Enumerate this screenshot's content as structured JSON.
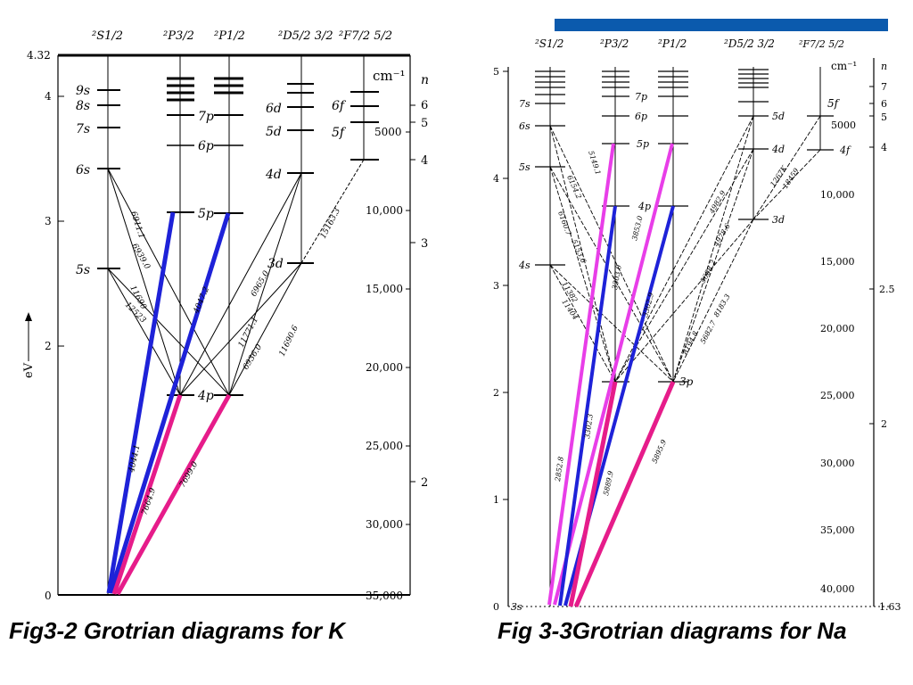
{
  "top_bar_color": "#0b5aad",
  "colors": {
    "blue": "#1e22d8",
    "magenta": "#e61c8a",
    "violet": "#e83ee8",
    "black": "#000000"
  },
  "captions": {
    "k": "Fig3-2  Grotrian diagrams for K",
    "na": "Fig 3-3Grotrian diagrams for Na"
  },
  "k": {
    "columns": [
      "²S1/2",
      "²P3/2",
      "²P1/2",
      "²D5/2 3/2",
      "²F7/2 5/2"
    ],
    "ev_axis": {
      "label": "eV",
      "ticks": [
        "4.32",
        "4",
        "3",
        "2",
        "0"
      ]
    },
    "cm_axis": {
      "unit": "cm⁻¹",
      "ticks": [
        "5000",
        "10,000",
        "15,000",
        "20,000",
        "25,000",
        "30,000",
        "35,000"
      ]
    },
    "n_axis": {
      "label": "n",
      "ticks": [
        "6",
        "5",
        "4",
        "3",
        "2"
      ]
    },
    "levels": {
      "s": [
        "9s",
        "8s",
        "7s",
        "6s",
        "5s"
      ],
      "p3": [
        "7p",
        "6p",
        "5p",
        "4p"
      ],
      "d": [
        "6d",
        "5d",
        "4d",
        "3d"
      ],
      "f": [
        "6f",
        "5f"
      ]
    },
    "transitions": [
      "4044.1",
      "4047.2",
      "7664.9",
      "7699.0",
      "6911.1",
      "6939.0",
      "11690",
      "12523",
      "11771.1",
      "6936.0",
      "6965.0",
      "15163.3",
      "11690.6"
    ]
  },
  "na": {
    "columns": [
      "²S1/2",
      "²P3/2",
      "²P1/2",
      "²D5/2 3/2",
      "²F7/2 5/2"
    ],
    "ev_axis": {
      "ticks": [
        "5",
        "4",
        "3",
        "2",
        "1",
        "0"
      ]
    },
    "cm_axis": {
      "unit": "cm⁻¹",
      "ticks": [
        "5000",
        "10,000",
        "15,000",
        "20,000",
        "25,000",
        "30,000",
        "35,000",
        "40,000"
      ]
    },
    "n_axis": {
      "label": "n",
      "ticks": [
        "7",
        "6",
        "5",
        "4",
        "2.5",
        "2",
        "1.63"
      ]
    },
    "levels": {
      "s": [
        "7s",
        "6s",
        "5s",
        "4s",
        "3s"
      ],
      "p": [
        "7p",
        "6p",
        "5p",
        "4p",
        "3p"
      ],
      "d": [
        "5d",
        "4d",
        "3d"
      ],
      "f": [
        "5f",
        "4f"
      ]
    },
    "transitions": [
      "2852.8",
      "3302.3",
      "3303.0",
      "3302.9",
      "3853.0",
      "5889.9",
      "5895.9",
      "8194.8",
      "5682.7",
      "4982.9",
      "4978.6",
      "5688.2",
      "8183.3",
      "6154.2",
      "6160.7",
      "5153.6",
      "11382",
      "11404",
      "5149.1",
      "1267K",
      "18459"
    ]
  }
}
